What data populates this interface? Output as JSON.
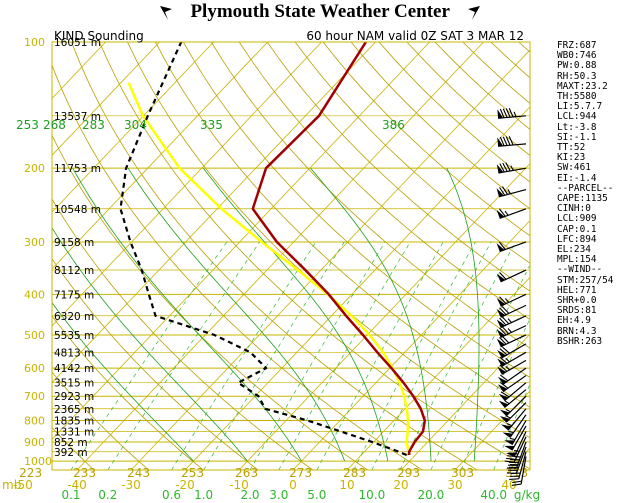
{
  "banner": {
    "title": "Plymouth State Weather Center"
  },
  "chart_data": {
    "type": "line",
    "title": "KIND Sounding",
    "subtitle": "60 hour NAM valid 0Z SAT 3 MAR 12",
    "pressure_levels": [
      "100",
      "200",
      "300",
      "400",
      "500",
      "600",
      "700",
      "800",
      "900",
      "1000"
    ],
    "pressure_unit": "mb",
    "height_labels": [
      {
        "p": 100,
        "label": "16051 m"
      },
      {
        "p": 150,
        "label": "13537 m"
      },
      {
        "p": 200,
        "label": "11753 m"
      },
      {
        "p": 250,
        "label": "10548 m"
      },
      {
        "p": 300,
        "label": "9158 m"
      },
      {
        "p": 350,
        "label": "8112 m"
      },
      {
        "p": 400,
        "label": "7175 m"
      },
      {
        "p": 450,
        "label": "6320 m"
      },
      {
        "p": 500,
        "label": "5535 m"
      },
      {
        "p": 550,
        "label": "4813 m"
      },
      {
        "p": 600,
        "label": "4142 m"
      },
      {
        "p": 650,
        "label": "3515 m"
      },
      {
        "p": 700,
        "label": "2923 m"
      },
      {
        "p": 750,
        "label": "2365 m"
      },
      {
        "p": 800,
        "label": "1835 m"
      },
      {
        "p": 850,
        "label": "1331 m"
      },
      {
        "p": 900,
        "label": "852 m"
      },
      {
        "p": 950,
        "label": "392 m"
      }
    ],
    "temperature_ticks": [
      "-50",
      "-40",
      "-30",
      "-20",
      "-10",
      "0",
      "10",
      "20",
      "30",
      "40"
    ],
    "mixing_ratio_labels": [
      "0.1",
      "0.2",
      "0.6",
      "1.0",
      "2.0",
      "3.0",
      "5.0",
      "10.0",
      "20.0",
      "40.0",
      "g/kg"
    ],
    "dry_adiabat_labels": [
      "223",
      "233",
      "243",
      "253",
      "263",
      "273",
      "283",
      "293",
      "303",
      "313"
    ],
    "moist_adiabat_labels": [
      "253",
      "268",
      "283",
      "304",
      "335",
      "386"
    ],
    "temperature_profile": [
      {
        "p": 967,
        "t": 18.9
      },
      {
        "p": 950,
        "t": 18.3
      },
      {
        "p": 900,
        "t": 17.6
      },
      {
        "p": 850,
        "t": 17.3
      },
      {
        "p": 800,
        "t": 15.7
      },
      {
        "p": 750,
        "t": 12.9
      },
      {
        "p": 700,
        "t": 9.3
      },
      {
        "p": 650,
        "t": 5.1
      },
      {
        "p": 600,
        "t": 0.3
      },
      {
        "p": 550,
        "t": -5.1
      },
      {
        "p": 500,
        "t": -10.8
      },
      {
        "p": 450,
        "t": -17.3
      },
      {
        "p": 400,
        "t": -24.3
      },
      {
        "p": 350,
        "t": -32.9
      },
      {
        "p": 300,
        "t": -43.1
      },
      {
        "p": 250,
        "t": -53.4
      },
      {
        "p": 200,
        "t": -58.1
      },
      {
        "p": 150,
        "t": -57.5
      },
      {
        "p": 100,
        "t": -61.8
      }
    ],
    "dewpoint_profile": [
      {
        "p": 967,
        "t": 18.4
      },
      {
        "p": 950,
        "t": 16.4
      },
      {
        "p": 900,
        "t": 9.7
      },
      {
        "p": 850,
        "t": 2.1
      },
      {
        "p": 800,
        "t": -6.0
      },
      {
        "p": 750,
        "t": -15.9
      },
      {
        "p": 700,
        "t": -19.4
      },
      {
        "p": 650,
        "t": -25.5
      },
      {
        "p": 600,
        "t": -22.9
      },
      {
        "p": 550,
        "t": -28.6
      },
      {
        "p": 500,
        "t": -38.3
      },
      {
        "p": 450,
        "t": -52.6
      },
      {
        "p": 400,
        "t": -57.6
      },
      {
        "p": 350,
        "t": -63.2
      },
      {
        "p": 300,
        "t": -70.2
      },
      {
        "p": 250,
        "t": -77.9
      },
      {
        "p": 200,
        "t": -84.0
      },
      {
        "p": 150,
        "t": -89.2
      },
      {
        "p": 100,
        "t": -96.0
      }
    ],
    "parcel_profile": [
      {
        "p": 967,
        "t": 18.9
      },
      {
        "p": 900,
        "t": 16.1
      },
      {
        "p": 850,
        "t": 14.5
      },
      {
        "p": 800,
        "t": 12.6
      },
      {
        "p": 750,
        "t": 10.3
      },
      {
        "p": 700,
        "t": 7.6
      },
      {
        "p": 650,
        "t": 4.4
      },
      {
        "p": 600,
        "t": 0.5
      },
      {
        "p": 550,
        "t": -4.0
      },
      {
        "p": 500,
        "t": -9.6
      },
      {
        "p": 450,
        "t": -16.3
      },
      {
        "p": 400,
        "t": -24.5
      },
      {
        "p": 350,
        "t": -34.3
      },
      {
        "p": 300,
        "t": -45.9
      },
      {
        "p": 250,
        "t": -59.2
      },
      {
        "p": 200,
        "t": -74.1
      },
      {
        "p": 150,
        "t": -90.1
      },
      {
        "p": 125,
        "t": -98.6
      }
    ],
    "wind_barbs": [
      {
        "p": 150,
        "dir": 265,
        "kt": 95
      },
      {
        "p": 175,
        "dir": 265,
        "kt": 90
      },
      {
        "p": 200,
        "dir": 260,
        "kt": 85
      },
      {
        "p": 225,
        "dir": 255,
        "kt": 75
      },
      {
        "p": 250,
        "dir": 250,
        "kt": 65
      },
      {
        "p": 300,
        "dir": 250,
        "kt": 60
      },
      {
        "p": 350,
        "dir": 245,
        "kt": 60
      },
      {
        "p": 400,
        "dir": 245,
        "kt": 65
      },
      {
        "p": 425,
        "dir": 245,
        "kt": 70
      },
      {
        "p": 450,
        "dir": 245,
        "kt": 75
      },
      {
        "p": 475,
        "dir": 245,
        "kt": 75
      },
      {
        "p": 500,
        "dir": 245,
        "kt": 70
      },
      {
        "p": 525,
        "dir": 240,
        "kt": 70
      },
      {
        "p": 550,
        "dir": 240,
        "kt": 65
      },
      {
        "p": 575,
        "dir": 240,
        "kt": 65
      },
      {
        "p": 600,
        "dir": 235,
        "kt": 60
      },
      {
        "p": 625,
        "dir": 235,
        "kt": 60
      },
      {
        "p": 650,
        "dir": 230,
        "kt": 60
      },
      {
        "p": 675,
        "dir": 230,
        "kt": 55
      },
      {
        "p": 700,
        "dir": 225,
        "kt": 55
      },
      {
        "p": 725,
        "dir": 225,
        "kt": 55
      },
      {
        "p": 750,
        "dir": 220,
        "kt": 55
      },
      {
        "p": 775,
        "dir": 215,
        "kt": 55
      },
      {
        "p": 800,
        "dir": 210,
        "kt": 55
      },
      {
        "p": 825,
        "dir": 210,
        "kt": 50
      },
      {
        "p": 850,
        "dir": 205,
        "kt": 50
      },
      {
        "p": 875,
        "dir": 205,
        "kt": 45
      },
      {
        "p": 900,
        "dir": 200,
        "kt": 45
      },
      {
        "p": 925,
        "dir": 200,
        "kt": 40
      },
      {
        "p": 950,
        "dir": 195,
        "kt": 30
      },
      {
        "p": 975,
        "dir": 190,
        "kt": 20
      }
    ],
    "grid": true,
    "skew": "skew-T log-p",
    "colors": {
      "isobars_isotherms": "#c8b400",
      "mixing_ratio": "#2eb82e",
      "dry_adiabats": "#b8a000",
      "moist_adiabats": "#1e9e1e",
      "temperature": "#a00000",
      "dewpoint": "#000000",
      "parcel": "#ffff00",
      "wind_barbs": "#000000"
    }
  },
  "indices": [
    "FRZ:687",
    "WB0:746",
    "PW:0.88",
    "RH:50.3",
    "MAXT:23.2",
    "TH:5580",
    "LI:5.7.7",
    "LCL:944",
    "Lt:-3.8",
    "SI:-1.1",
    "TT:52",
    "KI:23",
    "SW:461",
    "EI:-1.4",
    "--PARCEL--",
    "CAPE:1135",
    "CINH:0",
    "LCL:909",
    "CAP:0.1",
    "LFC:894",
    "EL:234",
    "MPL:154",
    "--WIND--",
    "STM:257/54",
    "HEL:771",
    "SHR+0.0",
    "SRDS:81",
    "EH:4.9",
    "BRN:4.3",
    "BSHR:263"
  ]
}
